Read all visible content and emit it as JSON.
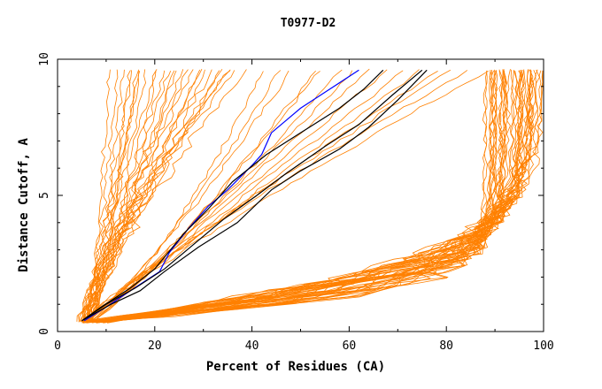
{
  "chart_data": {
    "type": "line",
    "title": "T0977-D2",
    "xlabel": "Percent of Residues (CA)",
    "ylabel": "Distance Cutoff, A",
    "xlim": [
      0,
      100
    ],
    "ylim": [
      0,
      10
    ],
    "x_ticks": [
      0,
      20,
      40,
      60,
      80,
      100
    ],
    "y_ticks": [
      0,
      5,
      10
    ],
    "x_tick_labels": [
      "0",
      "20",
      "40",
      "60",
      "80",
      "100"
    ],
    "y_tick_labels": [
      "0",
      "5",
      "10"
    ],
    "grid": false,
    "legend": "none",
    "colors": {
      "bundle": "#ff8000",
      "highlight_black": "#000000",
      "highlight_blue": "#0000ff",
      "frame": "#000000"
    },
    "bundle_groups": [
      {
        "count": 45,
        "start_x": [
          4,
          9
        ],
        "end_x": [
          88,
          100
        ],
        "end_y": 9.6,
        "shape": "high-plateau"
      },
      {
        "count": 28,
        "start_x": [
          4,
          7
        ],
        "end_x": [
          11,
          38
        ],
        "end_y": 9.6,
        "shape": "steep-left"
      },
      {
        "count": 15,
        "start_x": [
          5,
          7
        ],
        "end_x": [
          42,
          88
        ],
        "end_y": 9.6,
        "shape": "diagonal-spread"
      }
    ],
    "series": [
      {
        "color": "#0000ff",
        "x": [
          5.5,
          10,
          15,
          21,
          23,
          27,
          31,
          35,
          40,
          42,
          44,
          50,
          56,
          62
        ],
        "y": [
          0.4,
          0.9,
          1.5,
          2.2,
          2.9,
          3.8,
          4.6,
          5.2,
          6.1,
          6.5,
          7.3,
          8.2,
          8.9,
          9.6
        ]
      },
      {
        "color": "#000000",
        "x": [
          5,
          9,
          15,
          20,
          26,
          31,
          36,
          43,
          50,
          58,
          63,
          67
        ],
        "y": [
          0.4,
          0.9,
          1.6,
          2.3,
          3.6,
          4.5,
          5.5,
          6.5,
          7.3,
          8.2,
          8.9,
          9.6
        ]
      },
      {
        "color": "#000000",
        "x": [
          5,
          10,
          16,
          22,
          28,
          34,
          41,
          47,
          55,
          62,
          69,
          75
        ],
        "y": [
          0.4,
          1.0,
          1.6,
          2.3,
          3.2,
          4.1,
          5.0,
          5.8,
          6.8,
          7.6,
          8.7,
          9.6
        ]
      },
      {
        "color": "#000000",
        "x": [
          5,
          11,
          17,
          22,
          29,
          37,
          44,
          50,
          58,
          64,
          70,
          76
        ],
        "y": [
          0.4,
          1.0,
          1.5,
          2.2,
          3.1,
          4.0,
          5.2,
          5.9,
          6.7,
          7.5,
          8.5,
          9.6
        ]
      }
    ]
  }
}
